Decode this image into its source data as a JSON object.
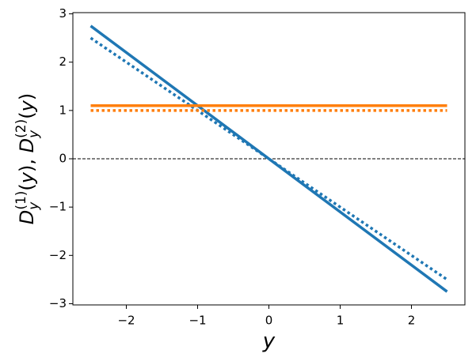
{
  "chart_data": {
    "type": "line",
    "x": [
      -2.5,
      2.5
    ],
    "series": [
      {
        "color": "#1f77b4",
        "style": "solid",
        "values": [
          2.75,
          -2.75
        ]
      },
      {
        "color": "#1f77b4",
        "style": "dotted",
        "values": [
          2.5,
          -2.5
        ]
      },
      {
        "color": "#ff7f0e",
        "style": "solid",
        "values": [
          1.1,
          1.1
        ]
      },
      {
        "color": "#ff7f0e",
        "style": "dotted",
        "values": [
          1.0,
          1.0
        ]
      }
    ],
    "hline": {
      "value": 0,
      "color": "#000000",
      "style": "dashed"
    },
    "xlabel": "y",
    "ylabel": [
      {
        "text": "D",
        "shift": "base"
      },
      {
        "text": "y",
        "shift": "sub"
      },
      {
        "text": "(1)",
        "shift": "sup"
      },
      {
        "text": "(y), ",
        "shift": "base"
      },
      {
        "text": "D",
        "shift": "base"
      },
      {
        "text": "y",
        "shift": "sub"
      },
      {
        "text": "(2)",
        "shift": "sup"
      },
      {
        "text": "(y)",
        "shift": "base"
      }
    ],
    "xlim": [
      -2.75,
      2.75
    ],
    "ylim": [
      -3.025,
      3.025
    ],
    "xticks": [
      {
        "value": -2,
        "label": "−2"
      },
      {
        "value": -1,
        "label": "−1"
      },
      0,
      1,
      2
    ],
    "yticks": [
      {
        "value": -3,
        "label": "−3"
      },
      {
        "value": -2,
        "label": "−2"
      },
      {
        "value": -1,
        "label": "−1"
      },
      0,
      1,
      2,
      3
    ],
    "grid": false
  }
}
